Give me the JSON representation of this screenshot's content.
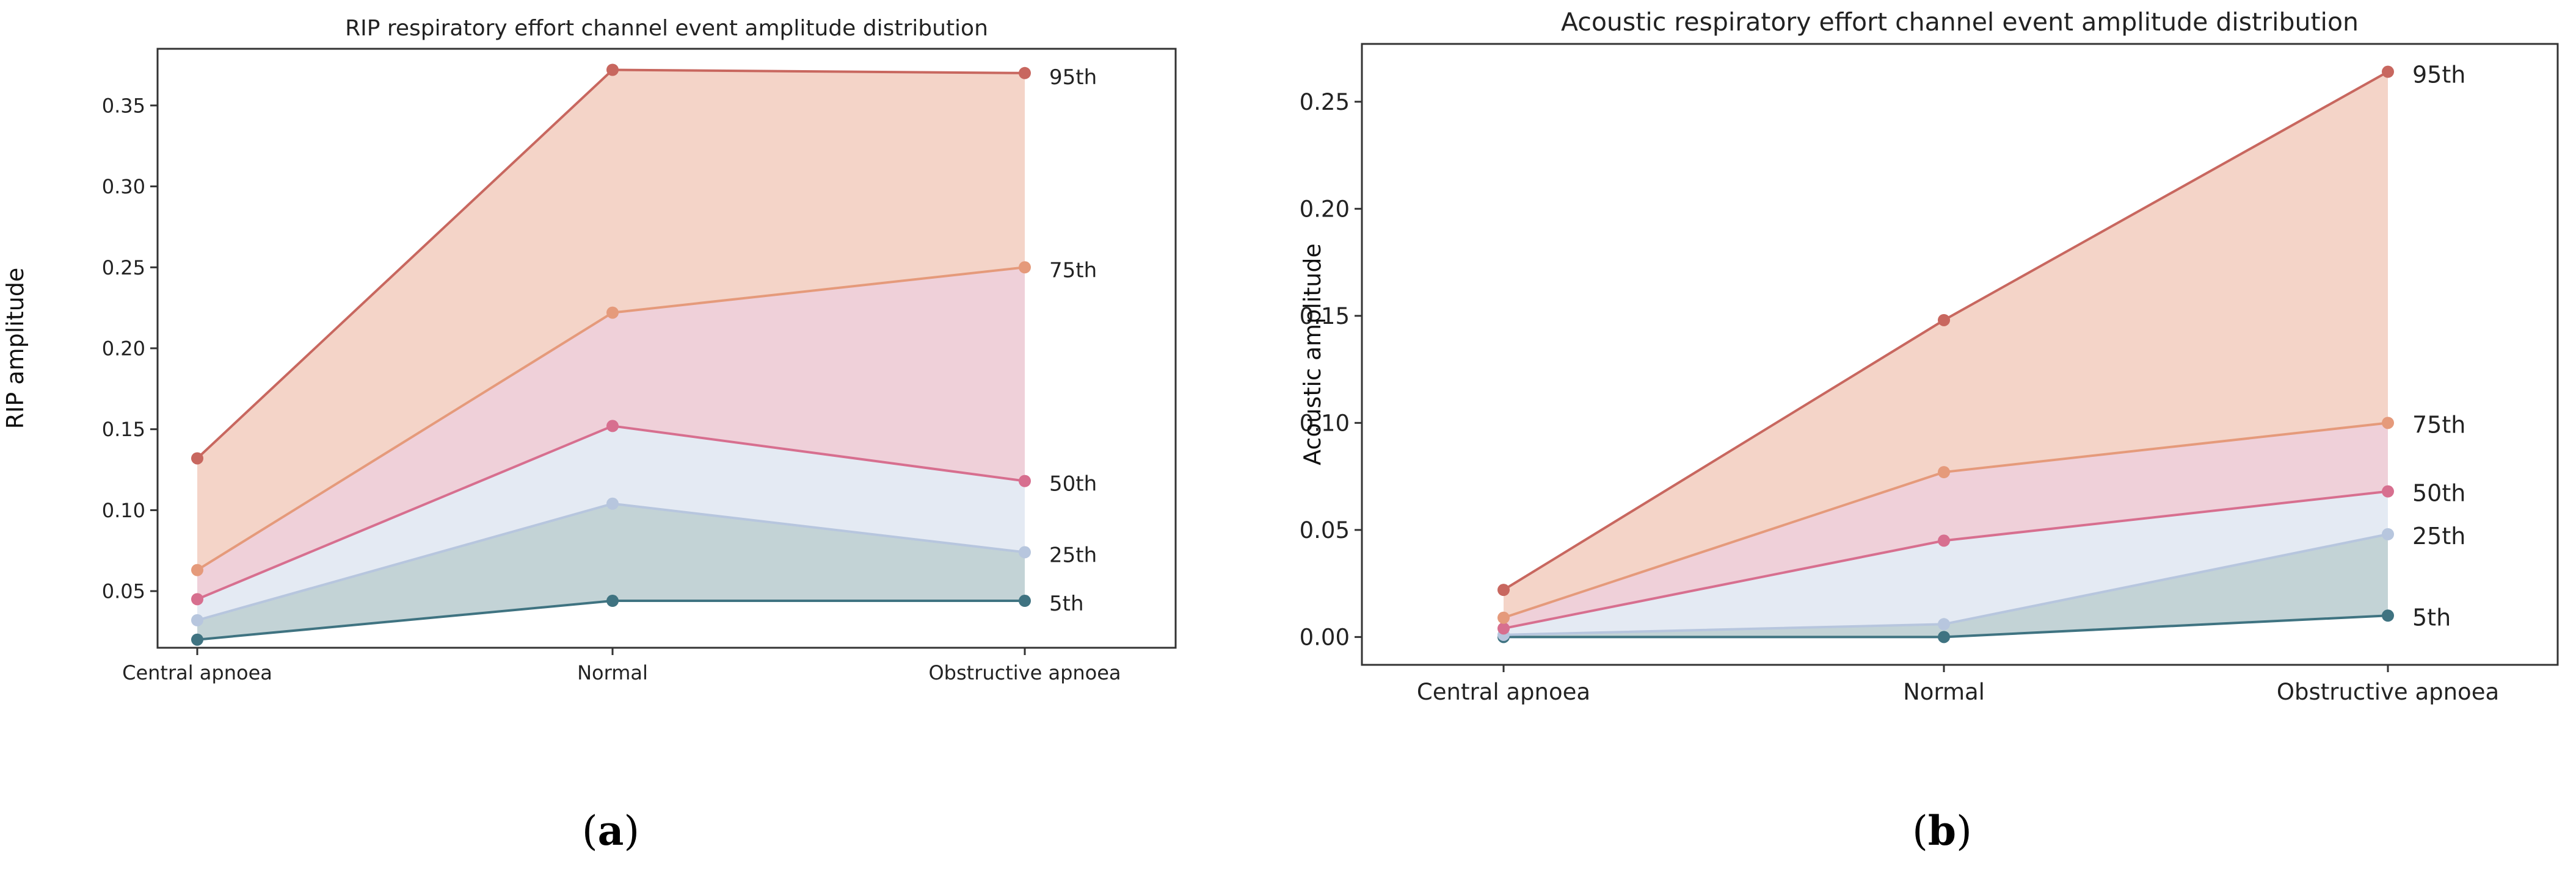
{
  "colors": {
    "p95": "#c8675f",
    "p75": "#e59a7b",
    "p50": "#d76f8f",
    "p25": "#b7c6de",
    "p5": "#3f7381",
    "fill_95_75": "#f4d4c8",
    "fill_75_50": "#efd0d9",
    "fill_50_25": "#e4eaf3",
    "fill_25_5": "#c3d3d6",
    "axis": "#333333"
  },
  "chart_data": [
    {
      "id": "a",
      "type": "area",
      "title": "RIP respiratory effort channel event amplitude distribution",
      "xlabel": "",
      "ylabel": "RIP amplitude",
      "categories": [
        "Central apnoea",
        "Normal",
        "Obstructive apnoea"
      ],
      "ylim": [
        0.015,
        0.385
      ],
      "yticks": [
        0.05,
        0.1,
        0.15,
        0.2,
        0.25,
        0.3,
        0.35
      ],
      "ytick_labels": [
        "0.05",
        "0.10",
        "0.15",
        "0.20",
        "0.25",
        "0.30",
        "0.35"
      ],
      "series": [
        {
          "name": "95th",
          "key": "p95",
          "values": [
            0.132,
            0.372,
            0.37
          ]
        },
        {
          "name": "75th",
          "key": "p75",
          "values": [
            0.063,
            0.222,
            0.25
          ]
        },
        {
          "name": "50th",
          "key": "p50",
          "values": [
            0.045,
            0.152,
            0.118
          ]
        },
        {
          "name": "25th",
          "key": "p25",
          "values": [
            0.032,
            0.104,
            0.074
          ]
        },
        {
          "name": "5th",
          "key": "p5",
          "values": [
            0.02,
            0.044,
            0.044
          ]
        }
      ],
      "caption": "a"
    },
    {
      "id": "b",
      "type": "area",
      "title": "Acoustic respiratory effort channel event amplitude distribution",
      "xlabel": "",
      "ylabel": "Acoustic amplitude",
      "categories": [
        "Central apnoea",
        "Normal",
        "Obstructive apnoea"
      ],
      "ylim": [
        -0.013,
        0.277
      ],
      "yticks": [
        0.0,
        0.05,
        0.1,
        0.15,
        0.2,
        0.25
      ],
      "ytick_labels": [
        "0.00",
        "0.05",
        "0.10",
        "0.15",
        "0.20",
        "0.25"
      ],
      "series": [
        {
          "name": "95th",
          "key": "p95",
          "values": [
            0.022,
            0.148,
            0.264
          ]
        },
        {
          "name": "75th",
          "key": "p75",
          "values": [
            0.009,
            0.077,
            0.1
          ]
        },
        {
          "name": "50th",
          "key": "p50",
          "values": [
            0.004,
            0.045,
            0.068
          ]
        },
        {
          "name": "25th",
          "key": "p25",
          "values": [
            0.001,
            0.006,
            0.048
          ]
        },
        {
          "name": "5th",
          "key": "p5",
          "values": [
            0.0,
            0.0,
            0.01
          ]
        }
      ],
      "caption": "b"
    }
  ]
}
